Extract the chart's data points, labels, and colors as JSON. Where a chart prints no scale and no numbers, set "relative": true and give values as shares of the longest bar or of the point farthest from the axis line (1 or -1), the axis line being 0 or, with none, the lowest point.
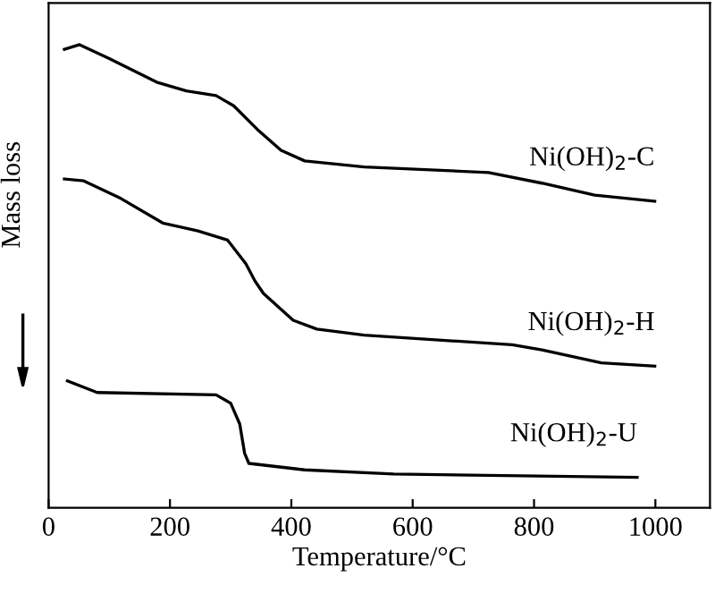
{
  "chart_data": {
    "type": "line",
    "relative": true,
    "xlabel": "Temperature/°C",
    "ylabel": "Mass loss",
    "xlim": [
      0,
      1090
    ],
    "xticks": [
      0,
      200,
      400,
      600,
      800,
      1000
    ],
    "grid": false,
    "marker": "none",
    "line_style": "solid",
    "series": [
      {
        "name": "Ni(OH)$_{2}$-C",
        "color": "#000000",
        "x": [
          26,
          51,
          100,
          178,
          227,
          276,
          305,
          344,
          383,
          422,
          520,
          725,
          813,
          900,
          999
        ],
        "values": [
          0.99,
          1.0,
          0.97,
          0.919,
          0.9,
          0.89,
          0.868,
          0.817,
          0.772,
          0.749,
          0.736,
          0.724,
          0.701,
          0.675,
          0.662
        ]
      },
      {
        "name": "Ni(OH)$_{2}$-H",
        "color": "#000000",
        "x": [
          26,
          58,
          119,
          188,
          246,
          295,
          325,
          340,
          354,
          403,
          442,
          520,
          764,
          813,
          911,
          999
        ],
        "values": [
          0.71,
          0.706,
          0.668,
          0.615,
          0.598,
          0.578,
          0.527,
          0.49,
          0.463,
          0.405,
          0.386,
          0.373,
          0.352,
          0.341,
          0.313,
          0.306
        ]
      },
      {
        "name": "Ni(OH)$_{2}$-U",
        "color": "#000000",
        "x": [
          31,
          80,
          276,
          300,
          315,
          323,
          330,
          422,
          569,
          970
        ],
        "values": [
          0.274,
          0.249,
          0.244,
          0.226,
          0.181,
          0.118,
          0.096,
          0.082,
          0.073,
          0.066
        ]
      }
    ]
  }
}
